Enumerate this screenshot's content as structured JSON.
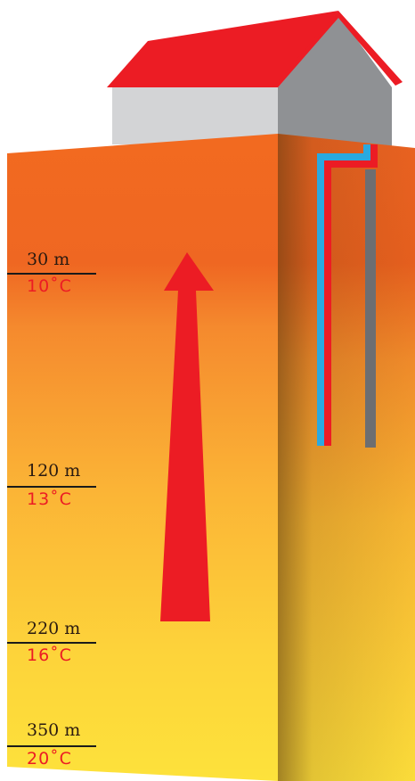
{
  "levels": [
    {
      "depth": "30 m",
      "temp": "10˚C"
    },
    {
      "depth": "120 m",
      "temp": "13˚C"
    },
    {
      "depth": "220 m",
      "temp": "16˚C"
    },
    {
      "depth": "350 m",
      "temp": "20˚C"
    }
  ],
  "colors": {
    "roof": "#ec1c24",
    "arrow": "#ec1c24",
    "pipe_cold": "#2aa9e0",
    "pipe_hot": "#ec1c24",
    "pipe_return": "#6d6e71",
    "ground_top": "#f26522",
    "ground_bottom": "#fde03a"
  }
}
